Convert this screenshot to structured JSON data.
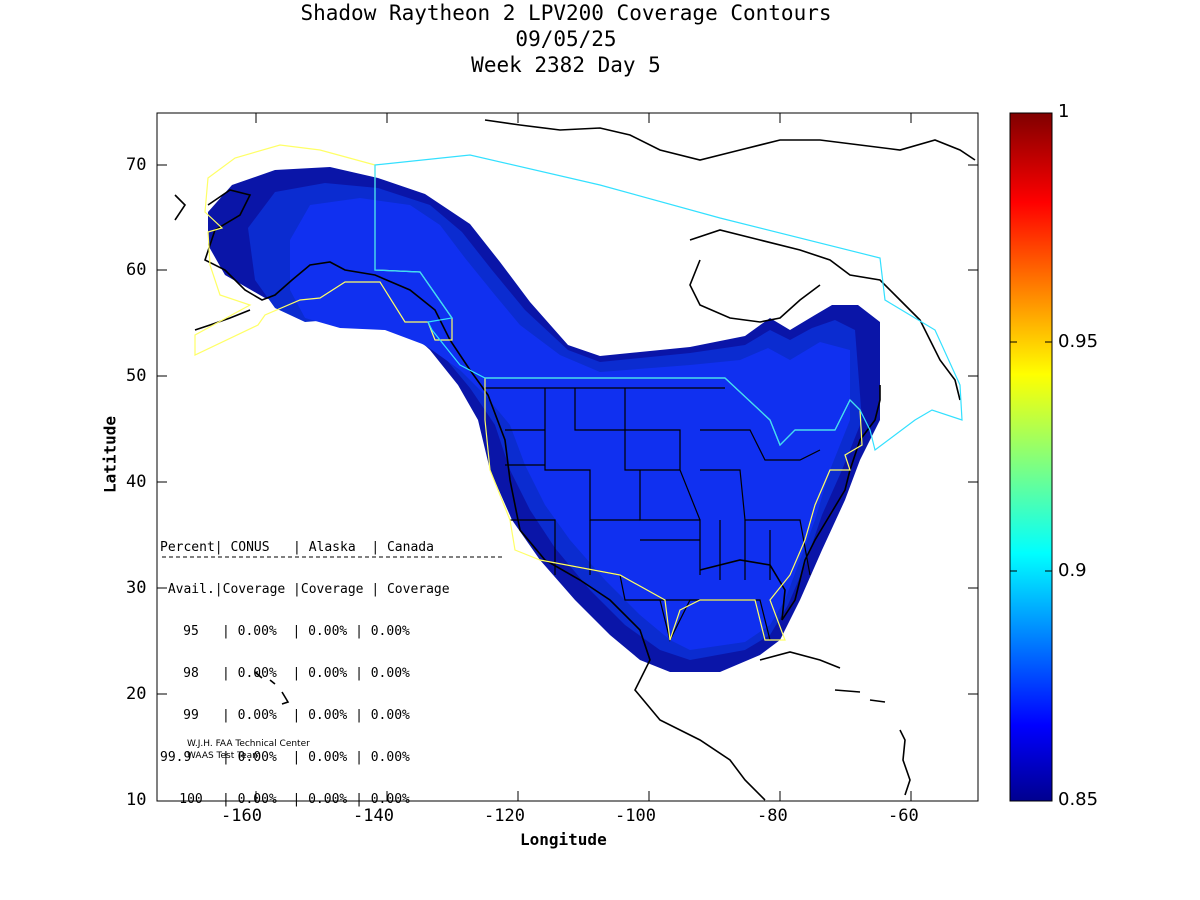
{
  "title": {
    "line1": "Shadow Raytheon 2 LPV200 Coverage Contours",
    "line2": "09/05/25",
    "line3": "Week 2382 Day 5"
  },
  "axes": {
    "xlabel": "Longitude",
    "ylabel": "Latitude",
    "xlim": [
      -175,
      -50
    ],
    "ylim": [
      10,
      75
    ],
    "xticks": [
      "-160",
      "-140",
      "-120",
      "-100",
      "-80",
      "-60"
    ],
    "yticks": [
      "10",
      "20",
      "30",
      "40",
      "50",
      "60",
      "70"
    ]
  },
  "colorbar": {
    "min": 0.85,
    "max": 1,
    "ticks": [
      "0.85",
      "0.9",
      "0.95",
      "1"
    ],
    "colormap": "jet"
  },
  "stats_table": {
    "header1": "Percent| CONUS   | Alaska  | Canada",
    "header2": " Avail.|Coverage |Coverage | Coverage",
    "rows": [
      {
        "pct": "95",
        "conus": "0.00%",
        "alaska": "0.00%",
        "canada": "0.00%"
      },
      {
        "pct": "98",
        "conus": "0.00%",
        "alaska": "0.00%",
        "canada": "0.00%"
      },
      {
        "pct": "99",
        "conus": "0.00%",
        "alaska": "0.00%",
        "canada": "0.00%"
      },
      {
        "pct": "99.9",
        "conus": "0.00%",
        "alaska": "0.00%",
        "canada": "0.00%"
      },
      {
        "pct": "100",
        "conus": "0.00%",
        "alaska": "0.00%",
        "canada": "0.00%"
      }
    ]
  },
  "credits": {
    "line1": "W.J.H. FAA Technical Center",
    "line2": "WAAS Test Team"
  },
  "colors": {
    "contour_outer": "#0a15a8",
    "contour_mid": "#0b2cd0",
    "contour_inner": "#1030f0",
    "service_conus": "#ffff66",
    "service_canada": "#33e0ff",
    "coast": "#000000"
  },
  "chart_data": {
    "type": "heatmap",
    "title": "Shadow Raytheon 2 LPV200 Coverage Contours",
    "xlabel": "Longitude",
    "ylabel": "Latitude",
    "xlim": [
      -175,
      -50
    ],
    "ylim": [
      10,
      75
    ],
    "value_range": [
      0.85,
      1
    ],
    "observed_availability": "below 0.85 - 0.87 over covered region (blue contours)"
  }
}
